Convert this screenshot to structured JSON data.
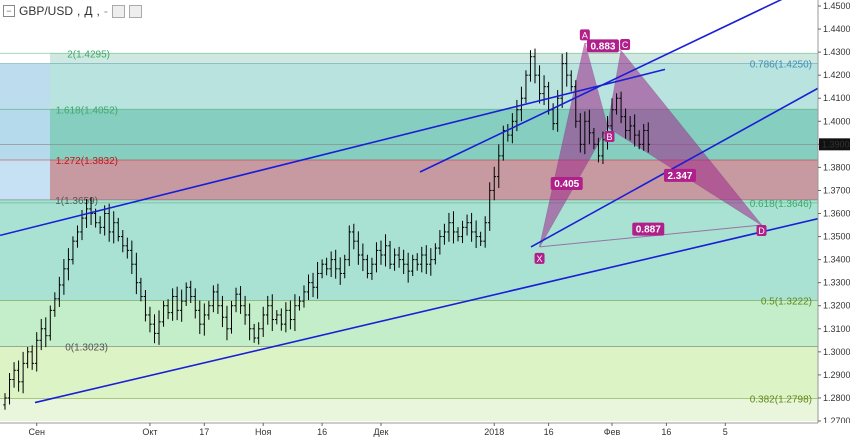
{
  "header": {
    "symbol": "GBP/USD",
    "separator": ",",
    "timeframe": "Д",
    "extra": "-"
  },
  "price_tag": "1.3900",
  "colors": {
    "candle": "#000000",
    "trend": "#1a1fd6",
    "harmonic_fill": "#a0288a",
    "harmonic_stroke": "#8a2a8a",
    "label_bg": "#b0208a"
  },
  "fib_levels": [
    {
      "label": "2(1.4295)",
      "value": 1.4295,
      "color": "#3fa86a"
    },
    {
      "label": "0.786(1.4250)",
      "value": 1.425,
      "color": "#3a8fb0"
    },
    {
      "label": "1.618(1.4052)",
      "value": 1.4052,
      "color": "#3fa86a"
    },
    {
      "label": "1.272(1.3832)",
      "value": 1.3832,
      "color": "#c01818"
    },
    {
      "label": "1(1.3659)",
      "value": 1.3659,
      "color": "#555555"
    },
    {
      "label": "0.618(1.3646)",
      "value": 1.3646,
      "color": "#3fa86a"
    },
    {
      "label": "0.5(1.3222)",
      "value": 1.3222,
      "color": "#5e8a1a"
    },
    {
      "label": "0(1.3023)",
      "value": 1.3023,
      "color": "#555555"
    },
    {
      "label": "0.382(1.2798)",
      "value": 1.2798,
      "color": "#5e8a1a"
    }
  ],
  "harmonic": {
    "points": [
      {
        "name": "X",
        "bar": 118,
        "price": 1.3455
      },
      {
        "name": "A",
        "bar": 128,
        "price": 1.4338
      },
      {
        "name": "B",
        "bar": 133,
        "price": 1.3975
      },
      {
        "name": "C",
        "bar": 136,
        "price": 1.4305
      },
      {
        "name": "D",
        "bar": 167,
        "price": 1.355
      }
    ],
    "ratios": [
      {
        "text": "0.883",
        "bar": 132,
        "price": 1.4325
      },
      {
        "text": "0.405",
        "bar": 124,
        "price": 1.3728
      },
      {
        "text": "2.347",
        "bar": 149,
        "price": 1.3763
      },
      {
        "text": "0.887",
        "bar": 142,
        "price": 1.353
      }
    ]
  },
  "chart_data": {
    "type": "candlestick",
    "title": "GBP/USD, Д",
    "ylim": [
      1.27,
      1.45
    ],
    "y_ticks": [
      "1.4500",
      "1.4400",
      "1.4300",
      "1.4200",
      "1.4100",
      "1.4000",
      "1.3900",
      "1.3800",
      "1.3700",
      "1.3600",
      "1.3500",
      "1.3400",
      "1.3300",
      "1.3200",
      "1.3100",
      "1.3000",
      "1.2900",
      "1.2800",
      "1.2700"
    ],
    "x_labels": [
      {
        "label": "Сен",
        "bar": 7
      },
      {
        "label": "Окт",
        "bar": 32
      },
      {
        "label": "17",
        "bar": 44
      },
      {
        "label": "Ноя",
        "bar": 57
      },
      {
        "label": "16",
        "bar": 70
      },
      {
        "label": "Дек",
        "bar": 83
      },
      {
        "label": "2018",
        "bar": 108
      },
      {
        "label": "16",
        "bar": 120
      },
      {
        "label": "Фев",
        "bar": 134
      },
      {
        "label": "16",
        "bar": 146
      },
      {
        "label": "5",
        "bar": 159
      }
    ],
    "closes": [
      1.28,
      1.288,
      1.292,
      1.287,
      1.295,
      1.3,
      1.295,
      1.305,
      1.31,
      1.307,
      1.318,
      1.323,
      1.329,
      1.336,
      1.34,
      1.348,
      1.352,
      1.358,
      1.362,
      1.36,
      1.356,
      1.354,
      1.36,
      1.352,
      1.356,
      1.35,
      1.346,
      1.344,
      1.338,
      1.33,
      1.324,
      1.316,
      1.312,
      1.308,
      1.313,
      1.32,
      1.317,
      1.324,
      1.318,
      1.322,
      1.328,
      1.324,
      1.318,
      1.312,
      1.316,
      1.32,
      1.326,
      1.32,
      1.315,
      1.31,
      1.32,
      1.325,
      1.32,
      1.316,
      1.31,
      1.306,
      1.31,
      1.316,
      1.32,
      1.314,
      1.316,
      1.312,
      1.318,
      1.314,
      1.32,
      1.322,
      1.326,
      1.33,
      1.328,
      1.334,
      1.338,
      1.336,
      1.34,
      1.336,
      1.334,
      1.34,
      1.352,
      1.348,
      1.342,
      1.34,
      1.334,
      1.338,
      1.344,
      1.342,
      1.346,
      1.338,
      1.342,
      1.34,
      1.338,
      1.335,
      1.34,
      1.338,
      1.342,
      1.338,
      1.34,
      1.345,
      1.35,
      1.352,
      1.356,
      1.352,
      1.35,
      1.354,
      1.356,
      1.352,
      1.35,
      1.348,
      1.356,
      1.37,
      1.376,
      1.385,
      1.396,
      1.394,
      1.4,
      1.405,
      1.41,
      1.42,
      1.428,
      1.42,
      1.412,
      1.415,
      1.405,
      1.399,
      1.41,
      1.425,
      1.42,
      1.415,
      1.4,
      1.39,
      1.4,
      1.395,
      1.39,
      1.385,
      1.392,
      1.398,
      1.405,
      1.41,
      1.402,
      1.396,
      1.398,
      1.394,
      1.39,
      1.396,
      1.39
    ]
  },
  "trendlines": [
    {
      "x1": 0,
      "p1": 1.3505,
      "x2": 665,
      "p2": 1.4225
    },
    {
      "x1": 420,
      "p1": 1.378,
      "x2": 850,
      "p2": 1.467
    },
    {
      "x1": 531,
      "p1": 1.3455,
      "x2": 850,
      "p2": 1.422
    },
    {
      "x1": 35,
      "p1": 1.278,
      "x2": 850,
      "p2": 1.361
    }
  ]
}
